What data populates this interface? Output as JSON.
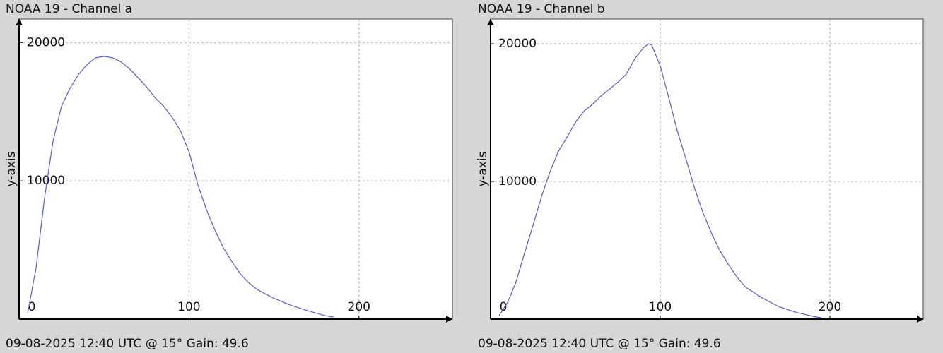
{
  "chart_data": [
    {
      "type": "line",
      "title": "NOAA 19 - Channel a",
      "y_label": "y-axis",
      "footer": "09-08-2025 12:40 UTC @ 15° Gain: 49.6",
      "color": "#5a5ad2",
      "grid": true,
      "xlim": [
        0,
        255
      ],
      "ylim": [
        0,
        21700
      ],
      "xticks": [
        0,
        100,
        200
      ],
      "yticks": [
        10000,
        20000
      ],
      "x": [
        5,
        10,
        15,
        20,
        25,
        30,
        35,
        40,
        45,
        50,
        55,
        60,
        65,
        70,
        75,
        80,
        85,
        90,
        95,
        100,
        105,
        110,
        115,
        120,
        125,
        130,
        135,
        140,
        150,
        160,
        170,
        180,
        185
      ],
      "values": [
        400,
        3700,
        8800,
        12900,
        15400,
        16700,
        17700,
        18400,
        18900,
        19000,
        18900,
        18600,
        18100,
        17450,
        16800,
        16000,
        15400,
        14600,
        13600,
        12100,
        9800,
        8000,
        6500,
        5200,
        4200,
        3300,
        2650,
        2150,
        1500,
        1000,
        600,
        250,
        150
      ]
    },
    {
      "type": "line",
      "title": "NOAA 19 - Channel b",
      "y_label": "y-axis",
      "footer": "09-08-2025 12:40 UTC @ 15° Gain: 49.6",
      "color": "#5a5ad2",
      "grid": true,
      "xlim": [
        0,
        255
      ],
      "ylim": [
        0,
        21800
      ],
      "xticks": [
        0,
        100,
        200
      ],
      "yticks": [
        10000,
        20000
      ],
      "x": [
        5,
        10,
        15,
        20,
        25,
        30,
        35,
        40,
        45,
        50,
        55,
        60,
        65,
        70,
        75,
        80,
        85,
        90,
        93,
        95,
        100,
        105,
        110,
        115,
        120,
        125,
        130,
        135,
        140,
        145,
        150,
        160,
        170,
        180,
        190,
        195
      ],
      "values": [
        250,
        1200,
        2700,
        4800,
        6800,
        8900,
        10700,
        12200,
        13200,
        14300,
        15100,
        15600,
        16200,
        16700,
        17200,
        17800,
        18900,
        19700,
        20000,
        19900,
        18400,
        16100,
        13700,
        11700,
        9600,
        7800,
        6300,
        5000,
        4000,
        3100,
        2350,
        1550,
        900,
        500,
        200,
        100
      ]
    }
  ]
}
